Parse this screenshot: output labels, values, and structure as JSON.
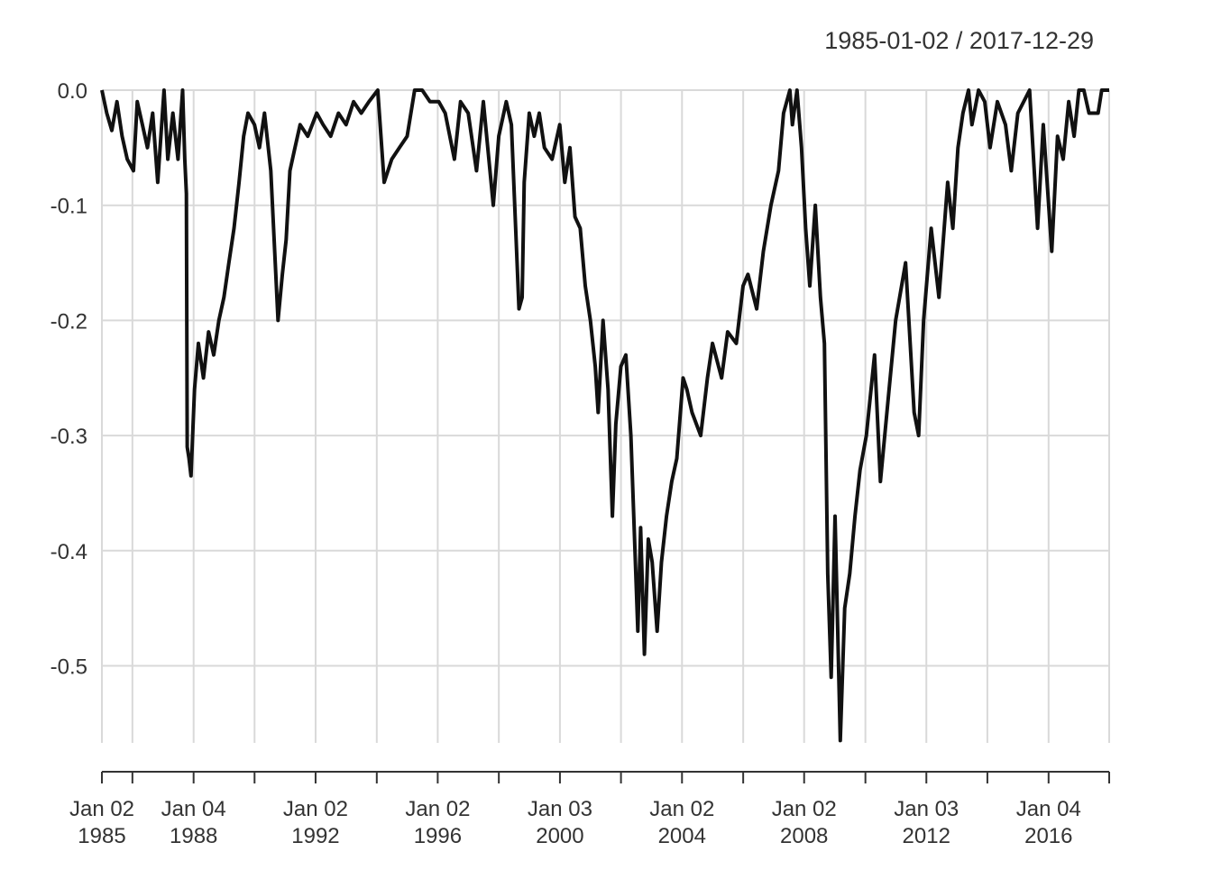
{
  "chart_data": {
    "type": "line",
    "title": "",
    "date_range": "1985-01-02 / 2017-12-29",
    "xlabel": "",
    "ylabel": "",
    "x_range": [
      "1985-01-02",
      "2017-12-29"
    ],
    "ylim": [
      -0.567,
      0.0
    ],
    "y_ticks": [
      0.0,
      -0.1,
      -0.2,
      -0.3,
      -0.4,
      -0.5
    ],
    "y_tick_labels": [
      "0.0",
      "-0.1",
      "-0.2",
      "-0.3",
      "-0.4",
      "-0.5"
    ],
    "x_gridlines": [
      "1985-01-02",
      "1986-01-02",
      "1988-01-04",
      "1990-01-02",
      "1992-01-02",
      "1994-01-03",
      "1996-01-02",
      "1998-01-02",
      "2000-01-03",
      "2002-01-02",
      "2004-01-02",
      "2006-01-03",
      "2008-01-02",
      "2010-01-04",
      "2012-01-03",
      "2014-01-02",
      "2016-01-04",
      "2017-12-29"
    ],
    "x_labels": [
      {
        "date": "1985-01-02",
        "line1": "Jan 02",
        "line2": "1985"
      },
      {
        "date": "1988-01-04",
        "line1": "Jan 04",
        "line2": "1988"
      },
      {
        "date": "1992-01-02",
        "line1": "Jan 02",
        "line2": "1992"
      },
      {
        "date": "1996-01-02",
        "line1": "Jan 02",
        "line2": "1996"
      },
      {
        "date": "2000-01-03",
        "line1": "Jan 03",
        "line2": "2000"
      },
      {
        "date": "2004-01-02",
        "line1": "Jan 02",
        "line2": "2004"
      },
      {
        "date": "2008-01-02",
        "line1": "Jan 02",
        "line2": "2008"
      },
      {
        "date": "2012-01-03",
        "line1": "Jan 03",
        "line2": "2012"
      },
      {
        "date": "2016-01-04",
        "line1": "Jan 04",
        "line2": "2016"
      }
    ],
    "grid": true,
    "series": [
      {
        "color": "#111111",
        "points": [
          [
            "1985-01-02",
            0.0
          ],
          [
            "1985-03-01",
            -0.02
          ],
          [
            "1985-05-01",
            -0.035
          ],
          [
            "1985-07-01",
            -0.01
          ],
          [
            "1985-09-01",
            -0.04
          ],
          [
            "1985-11-01",
            -0.06
          ],
          [
            "1986-01-15",
            -0.07
          ],
          [
            "1986-03-01",
            -0.01
          ],
          [
            "1986-05-01",
            -0.03
          ],
          [
            "1986-07-01",
            -0.05
          ],
          [
            "1986-09-01",
            -0.02
          ],
          [
            "1986-11-01",
            -0.08
          ],
          [
            "1987-01-15",
            -0.0
          ],
          [
            "1987-03-01",
            -0.06
          ],
          [
            "1987-05-01",
            -0.02
          ],
          [
            "1987-07-01",
            -0.06
          ],
          [
            "1987-08-25",
            0.0
          ],
          [
            "1987-09-20",
            -0.06
          ],
          [
            "1987-10-10",
            -0.09
          ],
          [
            "1987-10-19",
            -0.31
          ],
          [
            "1987-11-10",
            -0.32
          ],
          [
            "1987-12-04",
            -0.335
          ],
          [
            "1988-01-15",
            -0.26
          ],
          [
            "1988-03-01",
            -0.22
          ],
          [
            "1988-05-01",
            -0.25
          ],
          [
            "1988-07-01",
            -0.21
          ],
          [
            "1988-09-01",
            -0.23
          ],
          [
            "1988-11-01",
            -0.2
          ],
          [
            "1989-01-01",
            -0.18
          ],
          [
            "1989-03-01",
            -0.15
          ],
          [
            "1989-05-01",
            -0.12
          ],
          [
            "1989-07-01",
            -0.08
          ],
          [
            "1989-08-25",
            -0.04
          ],
          [
            "1989-10-15",
            -0.02
          ],
          [
            "1990-01-01",
            -0.03
          ],
          [
            "1990-03-01",
            -0.05
          ],
          [
            "1990-05-01",
            -0.02
          ],
          [
            "1990-07-15",
            -0.07
          ],
          [
            "1990-10-10",
            -0.2
          ],
          [
            "1990-12-01",
            -0.16
          ],
          [
            "1991-01-15",
            -0.13
          ],
          [
            "1991-03-01",
            -0.07
          ],
          [
            "1991-05-01",
            -0.05
          ],
          [
            "1991-07-01",
            -0.03
          ],
          [
            "1991-10-01",
            -0.04
          ],
          [
            "1992-01-15",
            -0.02
          ],
          [
            "1992-04-01",
            -0.03
          ],
          [
            "1992-07-01",
            -0.04
          ],
          [
            "1992-10-01",
            -0.02
          ],
          [
            "1993-01-01",
            -0.03
          ],
          [
            "1993-04-01",
            -0.01
          ],
          [
            "1993-07-01",
            -0.02
          ],
          [
            "1993-10-01",
            -0.01
          ],
          [
            "1994-01-15",
            0.0
          ],
          [
            "1994-04-01",
            -0.08
          ],
          [
            "1994-07-01",
            -0.06
          ],
          [
            "1994-10-01",
            -0.05
          ],
          [
            "1995-01-01",
            -0.04
          ],
          [
            "1995-04-01",
            -0.0
          ],
          [
            "1995-07-01",
            -0.0
          ],
          [
            "1995-10-01",
            -0.01
          ],
          [
            "1996-01-15",
            -0.01
          ],
          [
            "1996-04-01",
            -0.02
          ],
          [
            "1996-07-20",
            -0.06
          ],
          [
            "1996-10-01",
            -0.01
          ],
          [
            "1997-01-01",
            -0.02
          ],
          [
            "1997-04-10",
            -0.07
          ],
          [
            "1997-07-01",
            -0.01
          ],
          [
            "1997-10-27",
            -0.1
          ],
          [
            "1998-01-01",
            -0.04
          ],
          [
            "1998-04-01",
            -0.01
          ],
          [
            "1998-06-01",
            -0.03
          ],
          [
            "1998-08-31",
            -0.19
          ],
          [
            "1998-10-08",
            -0.18
          ],
          [
            "1998-11-01",
            -0.08
          ],
          [
            "1999-01-01",
            -0.02
          ],
          [
            "1999-03-01",
            -0.04
          ],
          [
            "1999-05-01",
            -0.02
          ],
          [
            "1999-07-01",
            -0.05
          ],
          [
            "1999-10-01",
            -0.06
          ],
          [
            "2000-01-01",
            -0.03
          ],
          [
            "2000-03-01",
            -0.08
          ],
          [
            "2000-05-01",
            -0.05
          ],
          [
            "2000-07-01",
            -0.11
          ],
          [
            "2000-09-01",
            -0.12
          ],
          [
            "2000-11-01",
            -0.17
          ],
          [
            "2001-01-01",
            -0.2
          ],
          [
            "2001-03-01",
            -0.24
          ],
          [
            "2001-04-04",
            -0.28
          ],
          [
            "2001-06-01",
            -0.2
          ],
          [
            "2001-08-01",
            -0.26
          ],
          [
            "2001-09-21",
            -0.37
          ],
          [
            "2001-11-01",
            -0.29
          ],
          [
            "2002-01-01",
            -0.24
          ],
          [
            "2002-03-01",
            -0.23
          ],
          [
            "2002-05-01",
            -0.3
          ],
          [
            "2002-07-23",
            -0.47
          ],
          [
            "2002-08-25",
            -0.38
          ],
          [
            "2002-10-09",
            -0.49
          ],
          [
            "2002-11-25",
            -0.39
          ],
          [
            "2003-01-10",
            -0.41
          ],
          [
            "2003-03-11",
            -0.47
          ],
          [
            "2003-05-01",
            -0.41
          ],
          [
            "2003-07-01",
            -0.37
          ],
          [
            "2003-09-01",
            -0.34
          ],
          [
            "2003-11-01",
            -0.32
          ],
          [
            "2004-01-15",
            -0.25
          ],
          [
            "2004-03-01",
            -0.26
          ],
          [
            "2004-05-01",
            -0.28
          ],
          [
            "2004-08-12",
            -0.3
          ],
          [
            "2004-11-01",
            -0.25
          ],
          [
            "2005-01-01",
            -0.22
          ],
          [
            "2005-04-20",
            -0.25
          ],
          [
            "2005-07-01",
            -0.21
          ],
          [
            "2005-10-13",
            -0.22
          ],
          [
            "2006-01-01",
            -0.17
          ],
          [
            "2006-03-01",
            -0.16
          ],
          [
            "2006-06-13",
            -0.19
          ],
          [
            "2006-09-01",
            -0.14
          ],
          [
            "2006-12-01",
            -0.1
          ],
          [
            "2007-03-01",
            -0.07
          ],
          [
            "2007-05-01",
            -0.02
          ],
          [
            "2007-07-15",
            0.0
          ],
          [
            "2007-08-15",
            -0.03
          ],
          [
            "2007-10-09",
            0.0
          ],
          [
            "2007-12-01",
            -0.05
          ],
          [
            "2008-01-20",
            -0.12
          ],
          [
            "2008-03-10",
            -0.17
          ],
          [
            "2008-05-15",
            -0.1
          ],
          [
            "2008-07-15",
            -0.18
          ],
          [
            "2008-09-01",
            -0.22
          ],
          [
            "2008-10-10",
            -0.42
          ],
          [
            "2008-11-20",
            -0.51
          ],
          [
            "2009-01-06",
            -0.37
          ],
          [
            "2009-03-09",
            -0.565
          ],
          [
            "2009-05-01",
            -0.45
          ],
          [
            "2009-07-01",
            -0.42
          ],
          [
            "2009-09-01",
            -0.37
          ],
          [
            "2009-11-01",
            -0.33
          ],
          [
            "2010-01-15",
            -0.3
          ],
          [
            "2010-04-23",
            -0.23
          ],
          [
            "2010-07-02",
            -0.34
          ],
          [
            "2010-10-01",
            -0.27
          ],
          [
            "2011-01-01",
            -0.2
          ],
          [
            "2011-04-29",
            -0.15
          ],
          [
            "2011-08-10",
            -0.28
          ],
          [
            "2011-10-03",
            -0.3
          ],
          [
            "2011-12-01",
            -0.2
          ],
          [
            "2012-03-01",
            -0.12
          ],
          [
            "2012-06-01",
            -0.18
          ],
          [
            "2012-09-14",
            -0.08
          ],
          [
            "2012-11-15",
            -0.12
          ],
          [
            "2013-01-15",
            -0.05
          ],
          [
            "2013-03-15",
            -0.02
          ],
          [
            "2013-05-21",
            0.0
          ],
          [
            "2013-07-01",
            -0.03
          ],
          [
            "2013-09-18",
            0.0
          ],
          [
            "2013-12-01",
            -0.01
          ],
          [
            "2014-02-03",
            -0.05
          ],
          [
            "2014-05-01",
            -0.01
          ],
          [
            "2014-08-07",
            -0.03
          ],
          [
            "2014-10-15",
            -0.07
          ],
          [
            "2015-01-01",
            -0.02
          ],
          [
            "2015-05-21",
            0.0
          ],
          [
            "2015-08-25",
            -0.12
          ],
          [
            "2015-11-01",
            -0.03
          ],
          [
            "2016-02-11",
            -0.14
          ],
          [
            "2016-04-20",
            -0.04
          ],
          [
            "2016-06-27",
            -0.06
          ],
          [
            "2016-09-01",
            -0.01
          ],
          [
            "2016-11-04",
            -0.04
          ],
          [
            "2017-01-01",
            -0.0
          ],
          [
            "2017-03-01",
            -0.0
          ],
          [
            "2017-05-01",
            -0.02
          ],
          [
            "2017-08-18",
            -0.02
          ],
          [
            "2017-10-01",
            -0.0
          ],
          [
            "2017-12-29",
            0.0
          ]
        ]
      }
    ]
  }
}
